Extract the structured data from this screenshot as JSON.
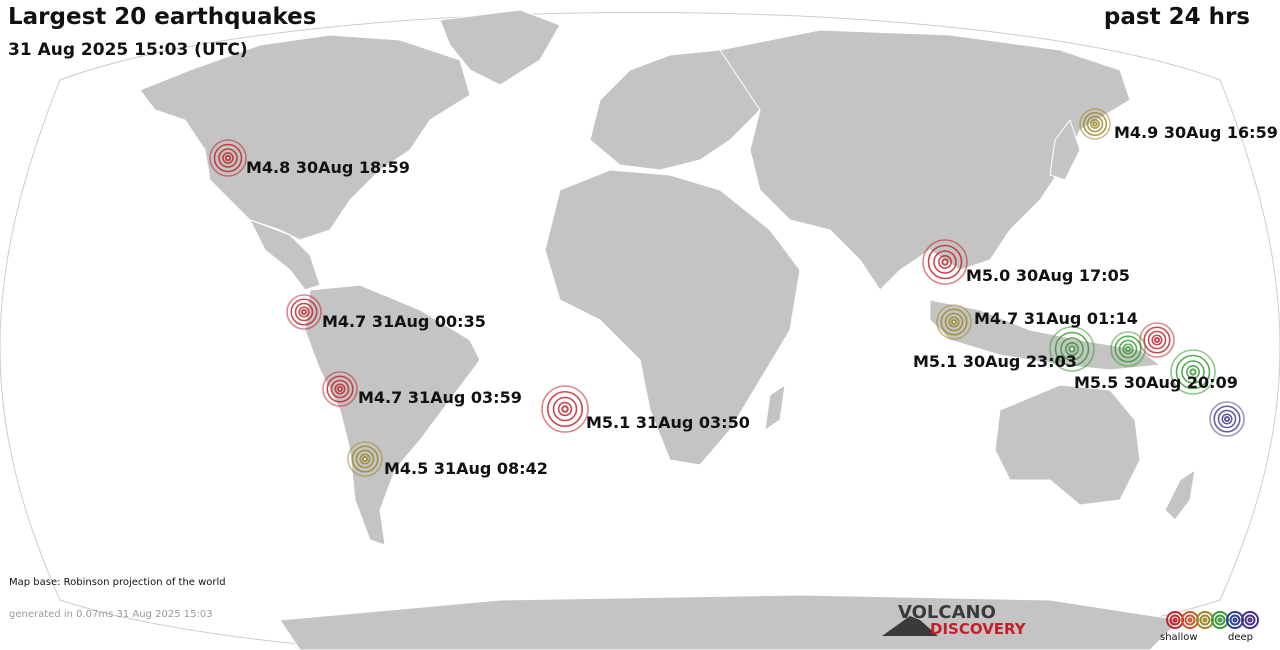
{
  "header": {
    "title": "Largest 20 earthquakes",
    "subtitle": "31 Aug 2025 15:03 (UTC)",
    "period": "past 24 hrs"
  },
  "quakes": [
    {
      "label": "M4.8 30Aug 18:59",
      "depth_color": "#c0282c"
    },
    {
      "label": "M4.9 30Aug 16:59",
      "depth_color": "#9c8a2a"
    },
    {
      "label": "M5.0 30Aug 17:05",
      "depth_color": "#c0282c"
    },
    {
      "label": "M4.7 31Aug 00:35",
      "depth_color": "#c0282c"
    },
    {
      "label": "M4.7 31Aug 01:14",
      "depth_color": "#9c8a2a"
    },
    {
      "label": "M5.1 30Aug 23:03",
      "depth_color": "#3a9a35"
    },
    {
      "label": "M5.5 30Aug 20:09",
      "depth_color": "#3a9a35"
    },
    {
      "label": "M4.7 31Aug 03:59",
      "depth_color": "#c0282c"
    },
    {
      "label": "M5.1 31Aug 03:50",
      "depth_color": "#c0282c"
    },
    {
      "label": "M4.5 31Aug 08:42",
      "depth_color": "#9c8a2a"
    },
    {
      "label": "",
      "depth_color": "#c0282c"
    },
    {
      "label": "",
      "depth_color": "#3a9a35"
    },
    {
      "label": "",
      "depth_color": "#4a3f8f"
    }
  ],
  "footer": {
    "map_base": "Map base: Robinson projection of the world",
    "generated": "generated in 0.07ms 31 Aug 2025 15:03"
  },
  "logo": {
    "top": "VOLCANO",
    "bottom": "DISCOVERY"
  },
  "legend": {
    "left_label": "shallow",
    "right_label": "deep",
    "colors": [
      "#c0282c",
      "#d0532a",
      "#9c8a2a",
      "#3a9a35",
      "#2a3f9a",
      "#4a2f8f"
    ]
  }
}
